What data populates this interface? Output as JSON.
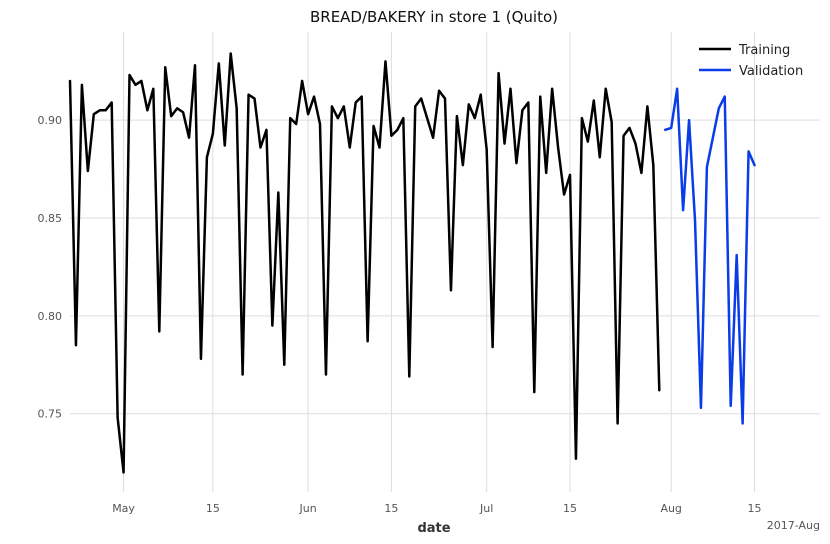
{
  "chart_data": {
    "type": "line",
    "title": "BREAD/BAKERY in store 1 (Quito)",
    "xlabel": "date",
    "ylabel": "",
    "xlim": [
      0,
      126
    ],
    "ylim": [
      0.71,
      0.945
    ],
    "x_ticks": [
      {
        "x": 9,
        "label": "May"
      },
      {
        "x": 24,
        "label": "15"
      },
      {
        "x": 40,
        "label": "Jun"
      },
      {
        "x": 54,
        "label": "15"
      },
      {
        "x": 70,
        "label": "Jul"
      },
      {
        "x": 84,
        "label": "15"
      },
      {
        "x": 101,
        "label": "Aug"
      },
      {
        "x": 115,
        "label": "15"
      }
    ],
    "x_offset_label": "2017-Aug",
    "y_ticks": [
      0.75,
      0.8,
      0.85,
      0.9
    ],
    "legend_position": "top-right",
    "series": [
      {
        "name": "Training",
        "color": "#000000",
        "x_start": 0,
        "values": [
          0.92,
          0.785,
          0.918,
          0.874,
          0.903,
          0.905,
          0.905,
          0.909,
          0.748,
          0.72,
          0.923,
          0.918,
          0.92,
          0.905,
          0.916,
          0.792,
          0.927,
          0.902,
          0.906,
          0.904,
          0.891,
          0.928,
          0.778,
          0.881,
          0.893,
          0.929,
          0.887,
          0.934,
          0.906,
          0.77,
          0.913,
          0.911,
          0.886,
          0.895,
          0.795,
          0.863,
          0.775,
          0.901,
          0.898,
          0.92,
          0.903,
          0.912,
          0.898,
          0.77,
          0.907,
          0.901,
          0.907,
          0.886,
          0.909,
          0.912,
          0.787,
          0.897,
          0.886,
          0.93,
          0.892,
          0.895,
          0.901,
          0.769,
          0.907,
          0.911,
          0.901,
          0.891,
          0.915,
          0.911,
          0.813,
          0.902,
          0.877,
          0.908,
          0.901,
          0.913,
          0.885,
          0.784,
          0.924,
          0.888,
          0.916,
          0.878,
          0.905,
          0.909,
          0.761,
          0.912,
          0.873,
          0.916,
          0.886,
          0.862,
          0.872,
          0.727,
          0.901,
          0.889,
          0.91,
          0.881,
          0.916,
          0.899,
          0.745,
          0.892,
          0.896,
          0.888,
          0.873,
          0.907,
          0.877,
          0.762
        ]
      },
      {
        "name": "Validation",
        "color": "#0a3ce8",
        "x_start": 100,
        "values": [
          0.895,
          0.896,
          0.916,
          0.854,
          0.9,
          0.849,
          0.753,
          0.876,
          0.891,
          0.906,
          0.912,
          0.754,
          0.831,
          0.745,
          0.884,
          0.877
        ]
      }
    ]
  }
}
